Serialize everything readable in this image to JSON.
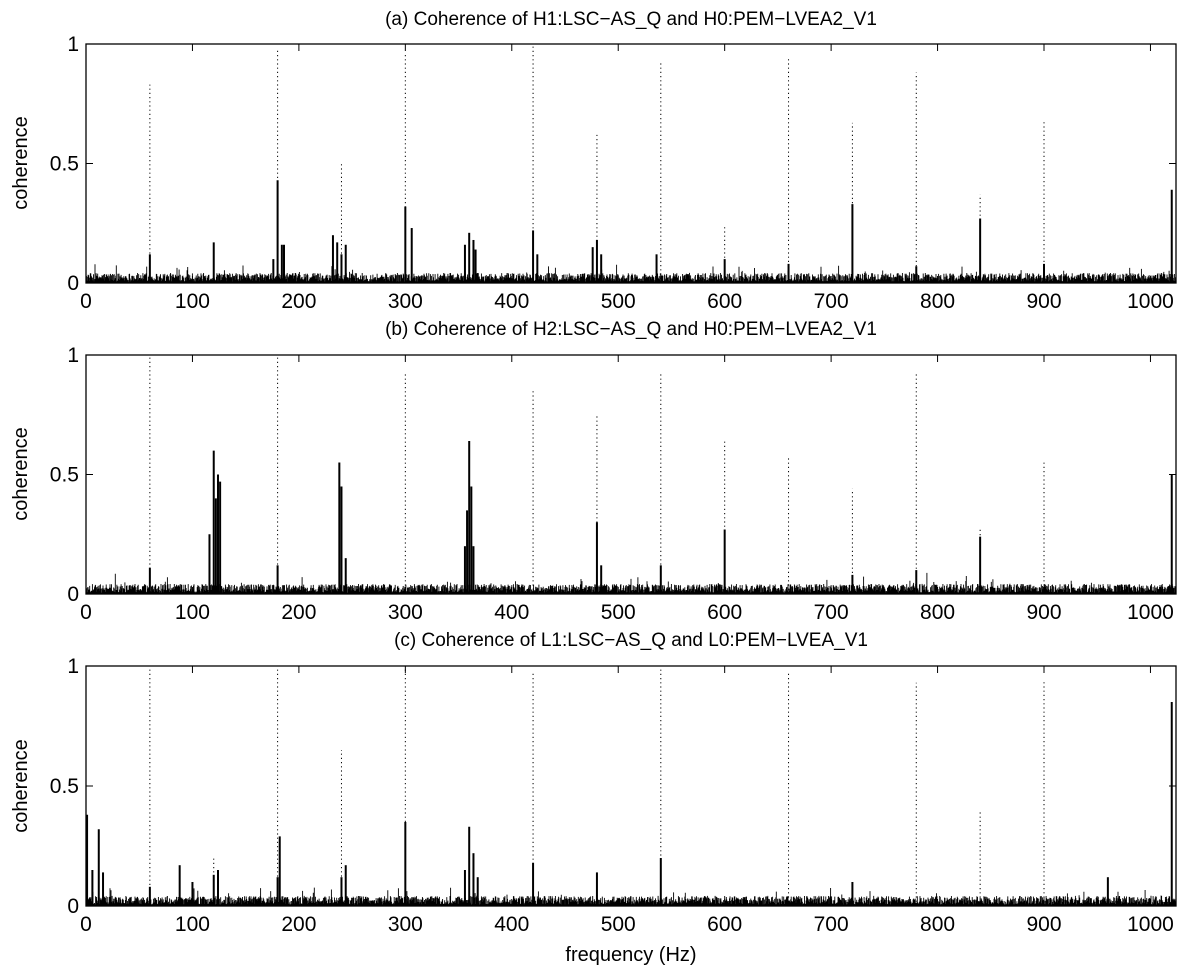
{
  "chart_data": [
    {
      "type": "line",
      "title": "(a) Coherence of H1:LSC−AS_Q and H0:PEM−LVEA2_V1",
      "xlabel": "",
      "ylabel": "coherence",
      "xlim": [
        0,
        1024
      ],
      "ylim": [
        0,
        1
      ],
      "xticks": [
        "0",
        "100",
        "200",
        "300",
        "400",
        "500",
        "600",
        "700",
        "800",
        "900",
        "1000"
      ],
      "yticks": [
        "0",
        "0.5",
        "1"
      ],
      "grid": false,
      "noise_floor": 0.04,
      "solid_peaks": [
        {
          "x": 60,
          "y": 0.12
        },
        {
          "x": 120,
          "y": 0.17
        },
        {
          "x": 176,
          "y": 0.1
        },
        {
          "x": 180,
          "y": 0.43
        },
        {
          "x": 184,
          "y": 0.16
        },
        {
          "x": 186,
          "y": 0.16
        },
        {
          "x": 232,
          "y": 0.2
        },
        {
          "x": 236,
          "y": 0.17
        },
        {
          "x": 240,
          "y": 0.12
        },
        {
          "x": 244,
          "y": 0.16
        },
        {
          "x": 300,
          "y": 0.32
        },
        {
          "x": 306,
          "y": 0.23
        },
        {
          "x": 356,
          "y": 0.16
        },
        {
          "x": 360,
          "y": 0.21
        },
        {
          "x": 364,
          "y": 0.18
        },
        {
          "x": 366,
          "y": 0.14
        },
        {
          "x": 420,
          "y": 0.22
        },
        {
          "x": 424,
          "y": 0.12
        },
        {
          "x": 476,
          "y": 0.15
        },
        {
          "x": 480,
          "y": 0.18
        },
        {
          "x": 484,
          "y": 0.12
        },
        {
          "x": 536,
          "y": 0.12
        },
        {
          "x": 600,
          "y": 0.1
        },
        {
          "x": 660,
          "y": 0.08
        },
        {
          "x": 720,
          "y": 0.33
        },
        {
          "x": 780,
          "y": 0.07
        },
        {
          "x": 840,
          "y": 0.27
        },
        {
          "x": 900,
          "y": 0.08
        },
        {
          "x": 1020,
          "y": 0.39
        }
      ],
      "dotted_peaks": [
        {
          "x": 60,
          "y": 0.83
        },
        {
          "x": 180,
          "y": 0.98
        },
        {
          "x": 240,
          "y": 0.5
        },
        {
          "x": 300,
          "y": 0.96
        },
        {
          "x": 420,
          "y": 0.99
        },
        {
          "x": 480,
          "y": 0.62
        },
        {
          "x": 540,
          "y": 0.92
        },
        {
          "x": 600,
          "y": 0.24
        },
        {
          "x": 660,
          "y": 0.94
        },
        {
          "x": 720,
          "y": 0.67
        },
        {
          "x": 780,
          "y": 0.88
        },
        {
          "x": 840,
          "y": 0.37
        },
        {
          "x": 900,
          "y": 0.68
        }
      ]
    },
    {
      "type": "line",
      "title": "(b) Coherence of H2:LSC−AS_Q and H0:PEM−LVEA2_V1",
      "xlabel": "",
      "ylabel": "coherence",
      "xlim": [
        0,
        1024
      ],
      "ylim": [
        0,
        1
      ],
      "xticks": [
        "0",
        "100",
        "200",
        "300",
        "400",
        "500",
        "600",
        "700",
        "800",
        "900",
        "1000"
      ],
      "yticks": [
        "0",
        "0.5",
        "1"
      ],
      "grid": false,
      "noise_floor": 0.04,
      "solid_peaks": [
        {
          "x": 60,
          "y": 0.11
        },
        {
          "x": 116,
          "y": 0.25
        },
        {
          "x": 120,
          "y": 0.6
        },
        {
          "x": 122,
          "y": 0.4
        },
        {
          "x": 124,
          "y": 0.5
        },
        {
          "x": 126,
          "y": 0.47
        },
        {
          "x": 180,
          "y": 0.12
        },
        {
          "x": 238,
          "y": 0.55
        },
        {
          "x": 240,
          "y": 0.45
        },
        {
          "x": 244,
          "y": 0.15
        },
        {
          "x": 356,
          "y": 0.2
        },
        {
          "x": 358,
          "y": 0.35
        },
        {
          "x": 360,
          "y": 0.64
        },
        {
          "x": 362,
          "y": 0.45
        },
        {
          "x": 364,
          "y": 0.2
        },
        {
          "x": 480,
          "y": 0.3
        },
        {
          "x": 484,
          "y": 0.12
        },
        {
          "x": 540,
          "y": 0.12
        },
        {
          "x": 600,
          "y": 0.27
        },
        {
          "x": 720,
          "y": 0.08
        },
        {
          "x": 780,
          "y": 0.1
        },
        {
          "x": 840,
          "y": 0.24
        },
        {
          "x": 1020,
          "y": 0.5
        }
      ],
      "dotted_peaks": [
        {
          "x": 60,
          "y": 0.99
        },
        {
          "x": 180,
          "y": 0.99
        },
        {
          "x": 300,
          "y": 0.93
        },
        {
          "x": 420,
          "y": 0.86
        },
        {
          "x": 480,
          "y": 0.75
        },
        {
          "x": 540,
          "y": 0.93
        },
        {
          "x": 600,
          "y": 0.64
        },
        {
          "x": 660,
          "y": 0.57
        },
        {
          "x": 720,
          "y": 0.44
        },
        {
          "x": 780,
          "y": 0.93
        },
        {
          "x": 840,
          "y": 0.28
        },
        {
          "x": 900,
          "y": 0.56
        }
      ]
    },
    {
      "type": "line",
      "title": "(c) Coherence of L1:LSC−AS_Q and L0:PEM−LVEA_V1",
      "xlabel": "frequency (Hz)",
      "ylabel": "coherence",
      "xlim": [
        0,
        1024
      ],
      "ylim": [
        0,
        1
      ],
      "xticks": [
        "0",
        "100",
        "200",
        "300",
        "400",
        "500",
        "600",
        "700",
        "800",
        "900",
        "1000"
      ],
      "yticks": [
        "0",
        "0.5",
        "1"
      ],
      "grid": false,
      "noise_floor": 0.04,
      "solid_peaks": [
        {
          "x": 1,
          "y": 0.38
        },
        {
          "x": 6,
          "y": 0.15
        },
        {
          "x": 12,
          "y": 0.32
        },
        {
          "x": 16,
          "y": 0.14
        },
        {
          "x": 60,
          "y": 0.08
        },
        {
          "x": 88,
          "y": 0.17
        },
        {
          "x": 100,
          "y": 0.1
        },
        {
          "x": 120,
          "y": 0.13
        },
        {
          "x": 124,
          "y": 0.15
        },
        {
          "x": 180,
          "y": 0.12
        },
        {
          "x": 182,
          "y": 0.29
        },
        {
          "x": 240,
          "y": 0.12
        },
        {
          "x": 244,
          "y": 0.17
        },
        {
          "x": 300,
          "y": 0.35
        },
        {
          "x": 356,
          "y": 0.15
        },
        {
          "x": 360,
          "y": 0.33
        },
        {
          "x": 364,
          "y": 0.22
        },
        {
          "x": 368,
          "y": 0.12
        },
        {
          "x": 420,
          "y": 0.18
        },
        {
          "x": 480,
          "y": 0.14
        },
        {
          "x": 540,
          "y": 0.2
        },
        {
          "x": 720,
          "y": 0.1
        },
        {
          "x": 960,
          "y": 0.12
        },
        {
          "x": 1020,
          "y": 0.85
        }
      ],
      "dotted_peaks": [
        {
          "x": 60,
          "y": 0.99
        },
        {
          "x": 120,
          "y": 0.21
        },
        {
          "x": 180,
          "y": 0.99
        },
        {
          "x": 240,
          "y": 0.65
        },
        {
          "x": 300,
          "y": 0.99
        },
        {
          "x": 420,
          "y": 0.97
        },
        {
          "x": 540,
          "y": 0.99
        },
        {
          "x": 660,
          "y": 0.98
        },
        {
          "x": 780,
          "y": 0.93
        },
        {
          "x": 840,
          "y": 0.4
        },
        {
          "x": 900,
          "y": 0.94
        }
      ]
    }
  ]
}
